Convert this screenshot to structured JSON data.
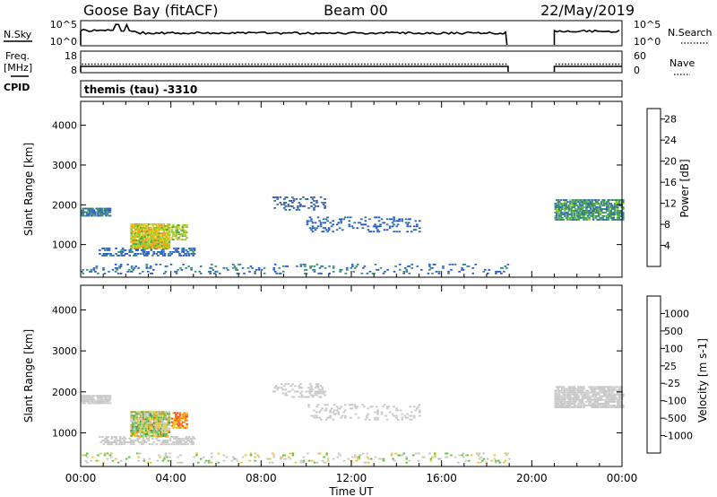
{
  "header": {
    "station": "Goose Bay (fitACF)",
    "beam": "Beam 00",
    "date": "22/May/2019"
  },
  "nsky_panel": {
    "left_label": "N.Sky",
    "left_ticks": [
      "10^5",
      "10^0"
    ],
    "right_label": "N.Search",
    "right_ticks": [
      "10^5",
      "10^0"
    ]
  },
  "freq_panel": {
    "left_label_1": "Freq.",
    "left_label_2": "[MHz]",
    "left_ticks": [
      "18",
      "8"
    ],
    "right_label": "Nave",
    "right_ticks": [
      "60",
      "0"
    ]
  },
  "cpid": {
    "label": "CPID",
    "value": "themis (tau) -3310"
  },
  "chart_data": [
    {
      "type": "heatmap",
      "name": "power",
      "ylabel": "Slant Range [km]",
      "ylim": [
        180,
        4600
      ],
      "yticks": [
        "1000",
        "2000",
        "3000",
        "4000"
      ],
      "ytick_values": [
        1000,
        2000,
        3000,
        4000
      ],
      "xlim_hours": [
        0,
        24
      ],
      "colorbar": {
        "label": "Power [dB]",
        "ticks": [
          "4",
          "8",
          "12",
          "16",
          "20",
          "24",
          "28"
        ],
        "tick_values": [
          4,
          8,
          12,
          16,
          20,
          24,
          28
        ],
        "range": [
          0,
          30
        ],
        "colors": [
          "#1a1ae6",
          "#2a52c8",
          "#2e6aa8",
          "#3a8a6a",
          "#3fa83f",
          "#8ccc1a",
          "#e6c81a",
          "#f0a01a",
          "#f06414",
          "#e61a1a"
        ]
      },
      "regions": [
        {
          "t": [
            0.0,
            1.3
          ],
          "r": [
            1700,
            1900
          ],
          "v": [
            4,
            12
          ],
          "d": 0.75
        },
        {
          "t": [
            0.8,
            5.0
          ],
          "r": [
            700,
            900
          ],
          "v": [
            4,
            10
          ],
          "d": 0.45
        },
        {
          "t": [
            2.2,
            3.9
          ],
          "r": [
            900,
            1500
          ],
          "v": [
            14,
            24
          ],
          "d": 0.85
        },
        {
          "t": [
            4.0,
            4.7
          ],
          "r": [
            1100,
            1500
          ],
          "v": [
            14,
            20
          ],
          "d": 0.6
        },
        {
          "t": [
            8.5,
            10.8
          ],
          "r": [
            1850,
            2200
          ],
          "v": [
            4,
            9
          ],
          "d": 0.25
        },
        {
          "t": [
            10.0,
            15.0
          ],
          "r": [
            1300,
            1700
          ],
          "v": [
            4,
            9
          ],
          "d": 0.18
        },
        {
          "t": [
            0.0,
            19.0
          ],
          "r": [
            250,
            500
          ],
          "v": [
            4,
            12
          ],
          "d": 0.12
        },
        {
          "t": [
            21.0,
            24.0
          ],
          "r": [
            1600,
            2100
          ],
          "v": [
            6,
            16
          ],
          "d": 0.7
        }
      ]
    },
    {
      "type": "heatmap",
      "name": "velocity",
      "ylabel": "Slant Range [km]",
      "ylim": [
        180,
        4600
      ],
      "yticks": [
        "1000",
        "2000",
        "3000",
        "4000"
      ],
      "ytick_values": [
        1000,
        2000,
        3000,
        4000
      ],
      "xlabel": "Time UT",
      "xticks": [
        "00:00",
        "04:00",
        "08:00",
        "12:00",
        "16:00",
        "20:00",
        "00:00"
      ],
      "xtick_hours": [
        0,
        4,
        8,
        12,
        16,
        20,
        24
      ],
      "colorbar": {
        "label": "Velocity [m s-1]",
        "ticks": [
          "1000",
          "500",
          "100",
          "25",
          "-25",
          "-100",
          "-500",
          "-1000"
        ],
        "colors": [
          "#1a3ad8",
          "#2a6aa0",
          "#3a9a5a",
          "#5ac83a",
          "#c8c8c8",
          "#f0c81a",
          "#f08a14",
          "#f04614",
          "#e61a1a"
        ]
      },
      "regions": [
        {
          "t": [
            0.0,
            1.3
          ],
          "r": [
            1700,
            1900
          ],
          "c": [
            4,
            4
          ],
          "d": 0.75
        },
        {
          "t": [
            0.8,
            5.0
          ],
          "r": [
            700,
            900
          ],
          "c": [
            4,
            4
          ],
          "d": 0.45
        },
        {
          "t": [
            2.2,
            3.9
          ],
          "r": [
            900,
            1500
          ],
          "c": [
            2,
            6
          ],
          "d": 0.85
        },
        {
          "t": [
            4.0,
            4.7
          ],
          "r": [
            1100,
            1500
          ],
          "c": [
            5,
            7
          ],
          "d": 0.6
        },
        {
          "t": [
            8.5,
            10.8
          ],
          "r": [
            1850,
            2200
          ],
          "c": [
            4,
            4
          ],
          "d": 0.25
        },
        {
          "t": [
            10.0,
            15.0
          ],
          "r": [
            1300,
            1700
          ],
          "c": [
            4,
            4
          ],
          "d": 0.18
        },
        {
          "t": [
            0.0,
            19.0
          ],
          "r": [
            250,
            500
          ],
          "c": [
            3,
            5
          ],
          "d": 0.12
        },
        {
          "t": [
            21.0,
            24.0
          ],
          "r": [
            1600,
            2100
          ],
          "c": [
            4,
            4
          ],
          "d": 0.7
        }
      ]
    }
  ]
}
